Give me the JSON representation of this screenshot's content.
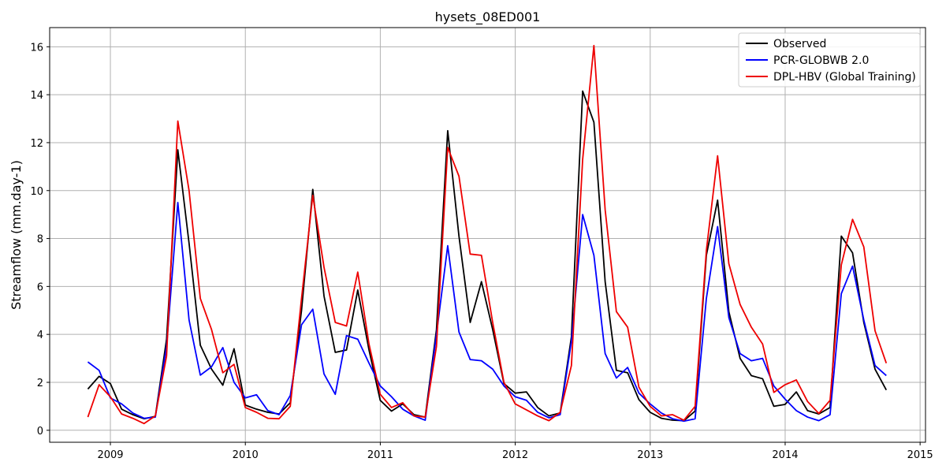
{
  "chart_data": {
    "type": "line",
    "title": "hysets_08ED001",
    "xlabel": "",
    "ylabel": "Streamflow (mm.day-1)",
    "xlim": [
      2008.55,
      2015.04
    ],
    "ylim": [
      -0.5,
      16.8
    ],
    "x_ticks": [
      2009,
      2010,
      2011,
      2012,
      2013,
      2014,
      2015
    ],
    "x_tick_labels": [
      "2009",
      "2010",
      "2011",
      "2012",
      "2013",
      "2014",
      "2015"
    ],
    "y_ticks": [
      0,
      2,
      4,
      6,
      8,
      10,
      12,
      14,
      16
    ],
    "y_tick_labels": [
      "0",
      "2",
      "4",
      "6",
      "8",
      "10",
      "12",
      "14",
      "16"
    ],
    "grid": true,
    "legend_position": "top-right",
    "x_start": 2008.833,
    "x_step": 0.08333,
    "series": [
      {
        "name": "Observed",
        "color": "#000000",
        "values": [
          1.72,
          2.25,
          1.95,
          0.88,
          0.65,
          0.48,
          0.58,
          3.8,
          11.7,
          7.8,
          3.55,
          2.55,
          1.88,
          3.4,
          1.05,
          0.88,
          0.75,
          0.68,
          1.15,
          5.0,
          10.05,
          5.6,
          3.25,
          3.35,
          5.85,
          3.35,
          1.25,
          0.8,
          1.1,
          0.65,
          0.55,
          4.2,
          12.5,
          8.1,
          4.5,
          6.2,
          4.2,
          1.95,
          1.55,
          1.6,
          0.95,
          0.6,
          0.72,
          3.9,
          14.15,
          12.85,
          6.2,
          2.5,
          2.4,
          1.28,
          0.75,
          0.5,
          0.42,
          0.4,
          0.8,
          7.3,
          9.6,
          4.95,
          3.0,
          2.28,
          2.15,
          1.0,
          1.08,
          1.6,
          0.82,
          0.68,
          0.95,
          8.1,
          7.4,
          4.5,
          2.55,
          1.68
        ]
      },
      {
        "name": "PCR-GLOBWB 2.0",
        "color": "#0000ff",
        "values": [
          2.85,
          2.5,
          1.35,
          1.1,
          0.72,
          0.5,
          0.55,
          3.5,
          9.5,
          4.6,
          2.3,
          2.65,
          3.45,
          2.0,
          1.35,
          1.48,
          0.82,
          0.65,
          1.45,
          4.4,
          5.05,
          2.35,
          1.5,
          3.95,
          3.8,
          2.8,
          1.85,
          1.4,
          0.88,
          0.6,
          0.42,
          4.0,
          7.7,
          4.1,
          2.95,
          2.9,
          2.55,
          1.85,
          1.4,
          1.25,
          0.75,
          0.52,
          0.65,
          3.7,
          9.0,
          7.3,
          3.2,
          2.18,
          2.62,
          1.55,
          1.1,
          0.72,
          0.48,
          0.38,
          0.48,
          5.5,
          8.5,
          4.7,
          3.2,
          2.9,
          3.0,
          1.85,
          1.3,
          0.82,
          0.55,
          0.4,
          0.65,
          5.7,
          6.85,
          4.6,
          2.7,
          2.28
        ]
      },
      {
        "name": "DPL-HBV (Global Training)",
        "color": "#ee0000",
        "values": [
          0.55,
          1.9,
          1.4,
          0.68,
          0.5,
          0.28,
          0.6,
          3.1,
          12.9,
          10.0,
          5.5,
          4.2,
          2.4,
          2.75,
          0.95,
          0.75,
          0.5,
          0.48,
          1.0,
          5.5,
          9.8,
          6.8,
          4.5,
          4.35,
          6.6,
          3.6,
          1.5,
          0.95,
          1.15,
          0.6,
          0.55,
          3.5,
          11.8,
          10.6,
          7.35,
          7.3,
          4.5,
          2.0,
          1.1,
          0.85,
          0.6,
          0.4,
          0.75,
          2.7,
          11.3,
          16.05,
          9.2,
          4.95,
          4.3,
          1.8,
          1.0,
          0.6,
          0.65,
          0.42,
          1.0,
          7.5,
          11.45,
          6.95,
          5.25,
          4.3,
          3.6,
          1.58,
          1.9,
          2.1,
          1.2,
          0.7,
          1.25,
          6.9,
          8.8,
          7.65,
          4.15,
          2.8
        ]
      }
    ]
  }
}
